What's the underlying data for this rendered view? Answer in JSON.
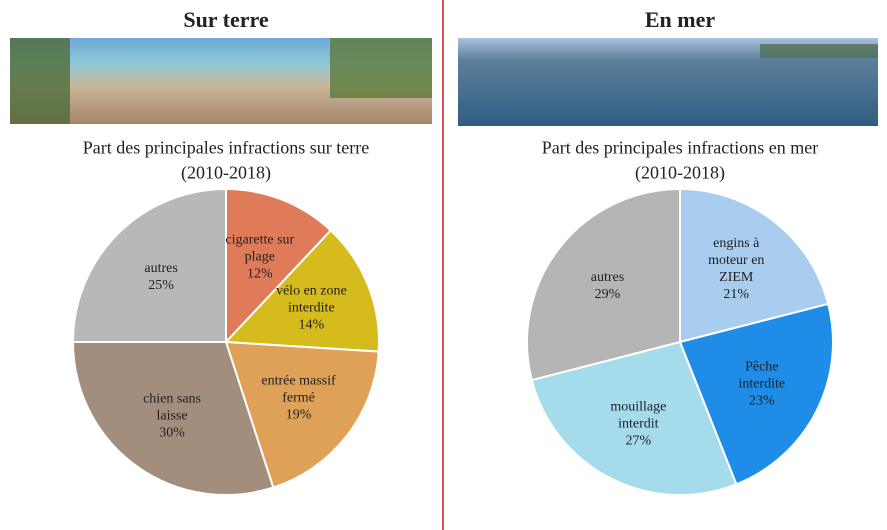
{
  "chart_data": [
    {
      "type": "pie",
      "header": "Sur terre",
      "title": "Part des principales infractions sur terre",
      "subtitle": "(2010-2018)",
      "categories": [
        "cigarette sur plage",
        "vélo en zone interdite",
        "entrée massif fermé",
        "chien sans laisse",
        "autres"
      ],
      "values": [
        12,
        14,
        19,
        30,
        25
      ],
      "value_labels": [
        "12%",
        "14%",
        "19%",
        "30%",
        "25%"
      ],
      "colors": [
        "#e07b5a",
        "#d6bb1c",
        "#dea157",
        "#a38e7e",
        "#b8b8b8"
      ]
    },
    {
      "type": "pie",
      "header": "En mer",
      "title": "Part des principales infractions en mer",
      "subtitle": "(2010-2018)",
      "categories": [
        "engins à moteur en ZIEM",
        "Pêche interdite",
        "mouillage interdit",
        "autres"
      ],
      "values": [
        21,
        23,
        27,
        29
      ],
      "value_labels": [
        "21%",
        "23%",
        "27%",
        "29%"
      ],
      "colors": [
        "#a9cdee",
        "#1f8ce8",
        "#a4dcec",
        "#b5b5b5"
      ]
    }
  ]
}
